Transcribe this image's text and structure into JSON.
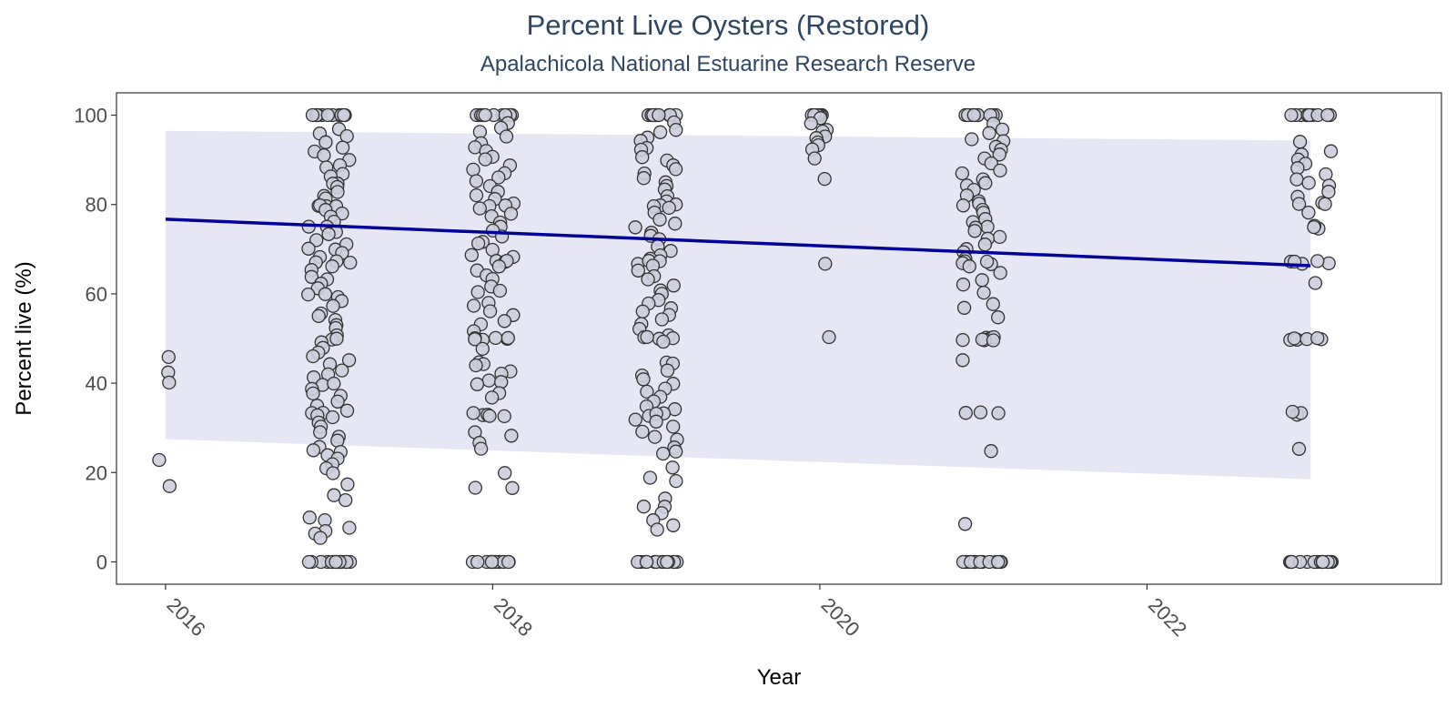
{
  "chart_data": {
    "type": "scatter",
    "title": "Percent Live Oysters (Restored)",
    "subtitle": "Apalachicola National Estuarine Research Reserve",
    "xlabel": "Year",
    "ylabel": "Percent live (%)",
    "xlim": [
      2015.7,
      2023.8
    ],
    "ylim": [
      -5,
      105
    ],
    "x_ticks": [
      "2016",
      "2018",
      "2020",
      "2022"
    ],
    "y_ticks": [
      "0",
      "20",
      "40",
      "60",
      "80",
      "100"
    ],
    "x_tick_rotation_deg": 45,
    "grid": false,
    "legend": "none",
    "trend_line": {
      "x": [
        2016,
        2023
      ],
      "y": [
        76.7,
        66.3
      ],
      "color": "#000099"
    },
    "confidence_band": {
      "x": [
        2016,
        2023
      ],
      "lower": [
        27.5,
        18.5
      ],
      "upper": [
        96.5,
        94.3
      ],
      "color": "#e6e6f5"
    },
    "point_fill": "#cdcddd",
    "point_stroke": "#333333",
    "year_groups": [
      {
        "year": 2016,
        "values": [
          46,
          42,
          40,
          22.5,
          16.7
        ]
      },
      {
        "year": 2017,
        "values": [
          100,
          100,
          100,
          100,
          100,
          100,
          100,
          100,
          100,
          100,
          100,
          100,
          97,
          96,
          95,
          94,
          93,
          92,
          91,
          90,
          89,
          88,
          87,
          86,
          85,
          85,
          84,
          83,
          82,
          81,
          80,
          80,
          80,
          80,
          79,
          78,
          77,
          76,
          75,
          75,
          74,
          73,
          72,
          71,
          70,
          70,
          69,
          68,
          67,
          67,
          67,
          66,
          65,
          64,
          63,
          62,
          61,
          60,
          60,
          59,
          58,
          57,
          56,
          55,
          54,
          53,
          52,
          51,
          50,
          50,
          49,
          48,
          47,
          46,
          45,
          44,
          43,
          42,
          41,
          40,
          40,
          39,
          38,
          37,
          36,
          35,
          34,
          33,
          33,
          33,
          32,
          31,
          30,
          29,
          28,
          27,
          26,
          25,
          25,
          24,
          23,
          22,
          21,
          20,
          17,
          15,
          14,
          10,
          9,
          8,
          7,
          6,
          5,
          0,
          0,
          0,
          0,
          0,
          0,
          0,
          0,
          0,
          0,
          0,
          0,
          0,
          0,
          0,
          0
        ]
      },
      {
        "year": 2018,
        "values": [
          100,
          100,
          100,
          100,
          100,
          100,
          100,
          100,
          100,
          100,
          100,
          100,
          100,
          98,
          97,
          96,
          95,
          94,
          93,
          92,
          91,
          90,
          89,
          88,
          87,
          86,
          85,
          84,
          83,
          82,
          81,
          80,
          80,
          80,
          79,
          78,
          77,
          76,
          75,
          74,
          73,
          72,
          71,
          70,
          69,
          68,
          67,
          67,
          67,
          66,
          65,
          64,
          63,
          62,
          61,
          60,
          58,
          57,
          56,
          55,
          54,
          53,
          52,
          50,
          50,
          50,
          50,
          50,
          50,
          48,
          45,
          44,
          44,
          43,
          42,
          41,
          40,
          40,
          38,
          37,
          33,
          33,
          33,
          33,
          33,
          29,
          28,
          27,
          25,
          20,
          16.7,
          16.7,
          0,
          0,
          0,
          0,
          0,
          0,
          0,
          0,
          0,
          0,
          0,
          0,
          0,
          0
        ]
      },
      {
        "year": 2019,
        "values": [
          100,
          100,
          100,
          100,
          100,
          100,
          100,
          100,
          100,
          100,
          100,
          100,
          100,
          98,
          97,
          96,
          95,
          94,
          93,
          92,
          91,
          90,
          89,
          88,
          87,
          86,
          85,
          84,
          83,
          82,
          81,
          80,
          80,
          80,
          79,
          78,
          77,
          76,
          75,
          74,
          73,
          72,
          71,
          70,
          69,
          68,
          67,
          67,
          67,
          66,
          65,
          64,
          63,
          62,
          61,
          60,
          59,
          58,
          57,
          56,
          55,
          54,
          53,
          52,
          51,
          50,
          50,
          50,
          50,
          49,
          45,
          44,
          43,
          42,
          41,
          40,
          39,
          38,
          37,
          36,
          35,
          34,
          33,
          33,
          33,
          32,
          31,
          30,
          29,
          28,
          27,
          26,
          25,
          24,
          21,
          19,
          18,
          14,
          12.5,
          12,
          11,
          9,
          8,
          7.5,
          0,
          0,
          0,
          0,
          0,
          0,
          0,
          0,
          0,
          0,
          0,
          0,
          0
        ]
      },
      {
        "year": 2020,
        "values": [
          100,
          100,
          100,
          100,
          100,
          100,
          100,
          100,
          99,
          98,
          97,
          96,
          95,
          95,
          94,
          93,
          92,
          90,
          85.7,
          66.7,
          50
        ]
      },
      {
        "year": 2021,
        "values": [
          100,
          100,
          100,
          100,
          100,
          100,
          100,
          100,
          100,
          100,
          100,
          98,
          97,
          96,
          95,
          94,
          93,
          92,
          91,
          90,
          89,
          88,
          87,
          86,
          85,
          84,
          83,
          82,
          81,
          80,
          80,
          79,
          78,
          77,
          76,
          75,
          75,
          74,
          73,
          72,
          71,
          70,
          69,
          68,
          67,
          67,
          67,
          67,
          66,
          65,
          63,
          62,
          60,
          58,
          57,
          55,
          50,
          50,
          50,
          50,
          50,
          50,
          50,
          50,
          45.5,
          33.3,
          33.3,
          33.3,
          25,
          8.3,
          0,
          0,
          0,
          0,
          0,
          0,
          0,
          0,
          0,
          0,
          0,
          0,
          0,
          0,
          0
        ]
      },
      {
        "year": 2023,
        "values": [
          100,
          100,
          100,
          100,
          100,
          100,
          100,
          100,
          100,
          100,
          100,
          94,
          92,
          91,
          90,
          89,
          88,
          87,
          86,
          85,
          84,
          83,
          82,
          80,
          80,
          80,
          78,
          75,
          75,
          75,
          67,
          67,
          67,
          67,
          67,
          62.5,
          50,
          50,
          50,
          50,
          50,
          50,
          33.3,
          33.3,
          33.3,
          25,
          0,
          0,
          0,
          0,
          0,
          0,
          0,
          0,
          0,
          0,
          0,
          0,
          0,
          0,
          0,
          0
        ]
      }
    ]
  }
}
